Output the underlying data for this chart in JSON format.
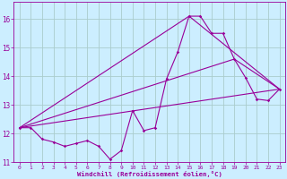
{
  "xlabel": "Windchill (Refroidissement éolien,°C)",
  "bg_color": "#cceeff",
  "grid_color": "#aacccc",
  "line_color": "#990099",
  "xlim": [
    -0.5,
    23.5
  ],
  "ylim": [
    11.0,
    16.6
  ],
  "xticks": [
    0,
    1,
    2,
    3,
    4,
    5,
    6,
    7,
    8,
    9,
    10,
    11,
    12,
    13,
    14,
    15,
    16,
    17,
    18,
    19,
    20,
    21,
    22,
    23
  ],
  "yticks": [
    11,
    12,
    13,
    14,
    15,
    16
  ],
  "series": [
    [
      0,
      12.2
    ],
    [
      1,
      12.2
    ],
    [
      2,
      11.8
    ],
    [
      3,
      11.7
    ],
    [
      4,
      11.55
    ],
    [
      5,
      11.65
    ],
    [
      6,
      11.75
    ],
    [
      7,
      11.55
    ],
    [
      8,
      11.1
    ],
    [
      9,
      11.4
    ],
    [
      10,
      12.8
    ],
    [
      11,
      12.1
    ],
    [
      12,
      12.2
    ],
    [
      13,
      13.9
    ],
    [
      14,
      14.85
    ],
    [
      15,
      16.1
    ],
    [
      16,
      16.1
    ],
    [
      17,
      15.5
    ],
    [
      18,
      15.5
    ],
    [
      19,
      14.6
    ],
    [
      20,
      13.95
    ],
    [
      21,
      13.2
    ],
    [
      22,
      13.15
    ],
    [
      23,
      13.55
    ]
  ],
  "line2": [
    [
      0,
      12.2
    ],
    [
      23,
      13.55
    ]
  ],
  "line3": [
    [
      0,
      12.2
    ],
    [
      19,
      14.6
    ],
    [
      23,
      13.55
    ]
  ],
  "line4": [
    [
      0,
      12.2
    ],
    [
      15,
      16.1
    ],
    [
      23,
      13.55
    ]
  ]
}
